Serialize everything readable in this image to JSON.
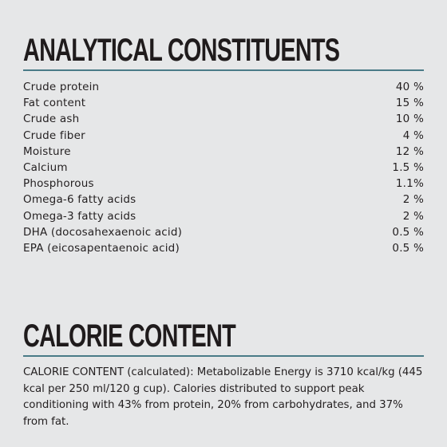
{
  "analytical": {
    "heading": "ANALYTICAL CONSTITUENTS",
    "rows": [
      {
        "label": "Crude protein",
        "value": "40 %"
      },
      {
        "label": "Fat content",
        "value": "15 %"
      },
      {
        "label": "Crude ash",
        "value": "10 %"
      },
      {
        "label": "Crude fiber",
        "value": "4 %"
      },
      {
        "label": "Moisture",
        "value": "12 %"
      },
      {
        "label": "Calcium",
        "value": "1.5 %"
      },
      {
        "label": "Phosphorous",
        "value": "1.1%"
      },
      {
        "label": "Omega-6 fatty acids",
        "value": "2 %"
      },
      {
        "label": "Omega-3 fatty acids",
        "value": "2 %"
      },
      {
        "label": "DHA (docosahexaenoic acid)",
        "value": "0.5 %"
      },
      {
        "label": "EPA (eicosapentaenoic acid)",
        "value": "0.5 %"
      }
    ]
  },
  "calorie": {
    "heading": "CALORIE CONTENT",
    "text": "CALORIE CONTENT (calculated): Metabolizable Energy is 3710 kcal/kg (445 kcal per 250 ml/120 g cup). Calories distributed to support peak conditioning with 43% from protein, 20% from carbohydrates, and 37% from fat."
  },
  "colors": {
    "background": "#e6e7e8",
    "rule": "#4a7b87",
    "text": "#231f20"
  }
}
